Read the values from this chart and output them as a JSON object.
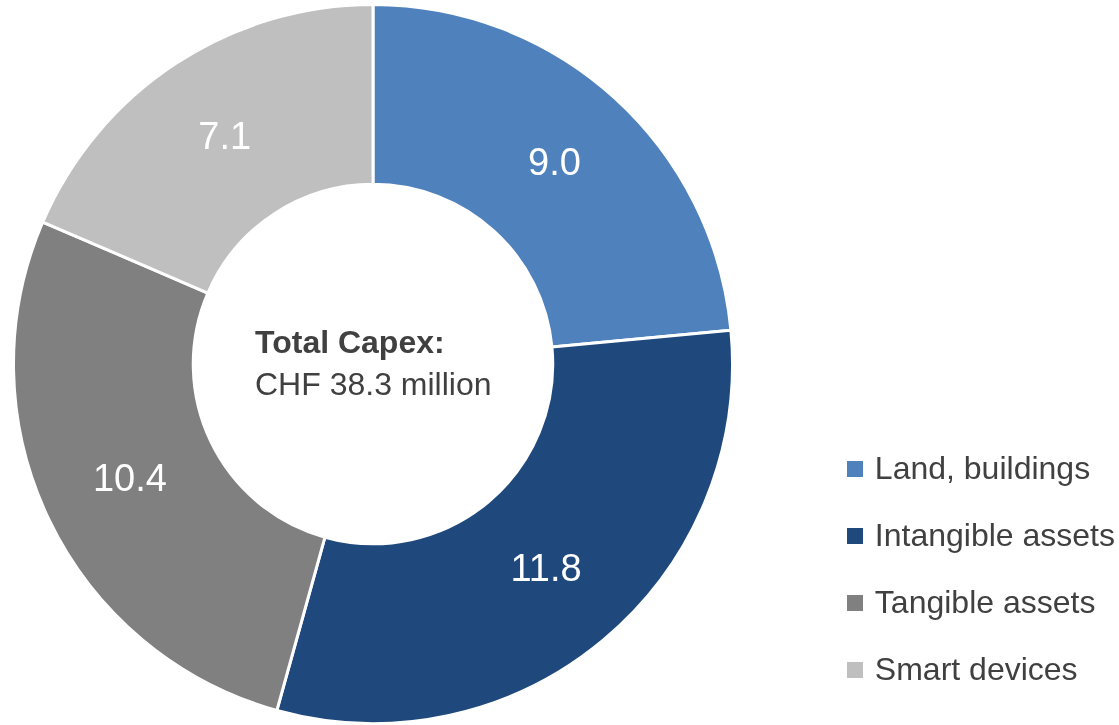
{
  "chart_data": {
    "type": "donut",
    "categories": [
      "Land, buildings",
      "Intangible assets",
      "Tangible assets",
      "Smart devices"
    ],
    "values": [
      9.0,
      11.8,
      10.4,
      7.1
    ],
    "colors": [
      "#4f81bd",
      "#1f497d",
      "#808080",
      "#bfbfbf"
    ],
    "value_labels": [
      "9.0",
      "11.8",
      "10.4",
      "7.1"
    ],
    "legend": "bottom right",
    "annotations": [
      "Total Capex:",
      "CHF 38.3 million"
    ]
  }
}
